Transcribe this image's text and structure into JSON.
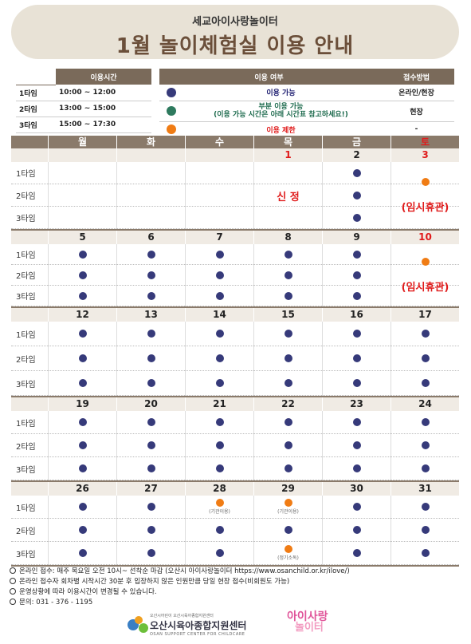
{
  "header": {
    "subtitle": "세교아이사랑놀이터",
    "title": "1월 놀이체험실 이용 안내"
  },
  "time_table": {
    "header": "이용시간",
    "rows": [
      {
        "label": "1타임",
        "time": "10:00 ~ 12:00"
      },
      {
        "label": "2타임",
        "time": "13:00 ~ 15:00"
      },
      {
        "label": "3타임",
        "time": "15:00 ~ 17:30"
      }
    ]
  },
  "status_table": {
    "header_status": "이용 여부",
    "header_method": "접수방법",
    "rows": [
      {
        "dot": "navy",
        "text": "이용 가능",
        "method": "온라인/현장"
      },
      {
        "dot": "green",
        "text": "부분 이용 가능",
        "text2": "(이용 가능 시간은 아래 시간표 참고하세요!)",
        "method": "현장"
      },
      {
        "dot": "orange",
        "text": "이용 제한",
        "method": "-"
      }
    ]
  },
  "colors": {
    "navy": "#363a7a",
    "green": "#2e7a5e",
    "orange": "#f07c14",
    "red": "#e01b1b",
    "header_bg": "#8a7a6a"
  },
  "calendar": {
    "days": [
      "월",
      "화",
      "수",
      "목",
      "금",
      "토"
    ],
    "slots": [
      "1타임",
      "2타임",
      "3타임"
    ],
    "weeks": [
      {
        "dates": [
          "",
          "",
          "",
          "1",
          "2",
          "3"
        ],
        "red": [
          false,
          false,
          false,
          true,
          false,
          true
        ],
        "cells": [
          [
            "",
            "",
            ""
          ],
          [
            "",
            "",
            ""
          ],
          [
            "",
            "",
            ""
          ],
          [
            "",
            "",
            ""
          ],
          [
            "navy",
            "navy",
            "navy"
          ],
          [
            "",
            "",
            ""
          ]
        ],
        "merged": {
          "3": {
            "text": "신    정"
          },
          "5": {
            "dot": "orange",
            "text": "(임시휴관)"
          }
        }
      },
      {
        "dates": [
          "5",
          "6",
          "7",
          "8",
          "9",
          "10"
        ],
        "red": [
          false,
          false,
          false,
          false,
          false,
          true
        ],
        "cells": [
          [
            "navy",
            "navy",
            "navy"
          ],
          [
            "navy",
            "navy",
            "navy"
          ],
          [
            "navy",
            "navy",
            "navy"
          ],
          [
            "navy",
            "navy",
            "navy"
          ],
          [
            "navy",
            "navy",
            "navy"
          ],
          [
            "",
            "",
            ""
          ]
        ],
        "merged": {
          "5": {
            "dot": "orange",
            "text": "(임시휴관)"
          }
        }
      },
      {
        "dates": [
          "12",
          "13",
          "14",
          "15",
          "16",
          "17"
        ],
        "red": [
          false,
          false,
          false,
          false,
          false,
          false
        ],
        "cells": [
          [
            "navy",
            "navy",
            "navy"
          ],
          [
            "navy",
            "navy",
            "navy"
          ],
          [
            "navy",
            "navy",
            "navy"
          ],
          [
            "navy",
            "navy",
            "navy"
          ],
          [
            "navy",
            "navy",
            "navy"
          ],
          [
            "navy",
            "navy",
            "navy"
          ]
        ],
        "merged": {}
      },
      {
        "dates": [
          "19",
          "20",
          "21",
          "22",
          "23",
          "24"
        ],
        "red": [
          false,
          false,
          false,
          false,
          false,
          false
        ],
        "cells": [
          [
            "navy",
            "navy",
            "navy"
          ],
          [
            "navy",
            "navy",
            "navy"
          ],
          [
            "navy",
            "navy",
            "navy"
          ],
          [
            "navy",
            "navy",
            "navy"
          ],
          [
            "navy",
            "navy",
            "navy"
          ],
          [
            "navy",
            "navy",
            "navy"
          ]
        ],
        "merged": {}
      },
      {
        "dates": [
          "26",
          "27",
          "28",
          "29",
          "30",
          "31"
        ],
        "red": [
          false,
          false,
          false,
          false,
          false,
          false
        ],
        "cells": [
          [
            "navy",
            "navy",
            "navy"
          ],
          [
            "navy",
            "navy",
            "navy"
          ],
          [
            "orange",
            "navy",
            "navy"
          ],
          [
            "orange",
            "navy",
            "orange"
          ],
          [
            "navy",
            "navy",
            "navy"
          ],
          [
            "navy",
            "navy",
            "navy"
          ]
        ],
        "notes": {
          "2": [
            "(기관이용)",
            "",
            ""
          ],
          "3": [
            "(기관이용)",
            "",
            "(정기소독)"
          ]
        },
        "merged": {}
      }
    ]
  },
  "notes": [
    "온라인 접수: 매주 목요일 오전 10시~ 선착순 마감 (오산시 아이사랑놀이터 https://www.osanchild.or.kr/ilove/)",
    "온라인 접수자 회차별 시작시간 30분 후 입장하지 않은 인원만큼 당일 현장 접수(비회원도 가능)",
    "운영상황에 따라 이용시간이 변경될 수 있습니다.",
    "문의: 031 - 376 - 1195"
  ],
  "footer": {
    "org_small": "오산시어린이 오산시육아종합지원센터",
    "org_name": "오산시육아종합지원센터",
    "org_eng": "OSAN SUPPORT CENTER FOR CHILDCARE",
    "logo2_line1": "아이사랑",
    "logo2_line2": "놀이터"
  }
}
